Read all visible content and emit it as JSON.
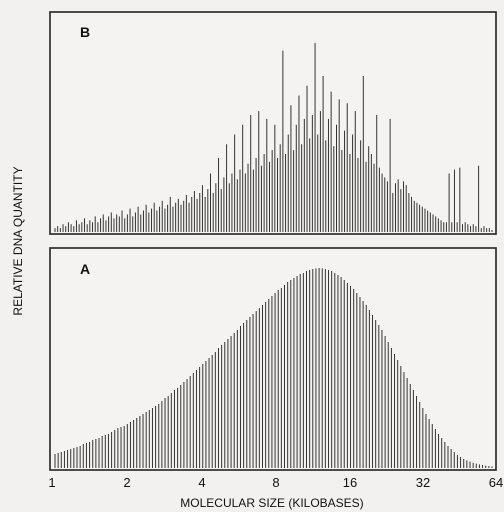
{
  "figure": {
    "ylabel": "RELATIVE DNA QUANTITY",
    "xlabel": "MOLECULAR SIZE (KILOBASES)",
    "tick_labels": [
      "1",
      "2",
      "4",
      "8",
      "16",
      "32",
      "64"
    ]
  },
  "chart_data": [
    {
      "type": "bar",
      "panel_label": "B",
      "x_scale": "log2",
      "xlim": [
        1,
        64
      ],
      "values": [
        0.02,
        0.03,
        0.02,
        0.04,
        0.03,
        0.05,
        0.04,
        0.03,
        0.06,
        0.04,
        0.05,
        0.07,
        0.04,
        0.06,
        0.05,
        0.08,
        0.05,
        0.07,
        0.09,
        0.06,
        0.08,
        0.1,
        0.07,
        0.09,
        0.08,
        0.11,
        0.07,
        0.09,
        0.12,
        0.08,
        0.1,
        0.13,
        0.09,
        0.11,
        0.14,
        0.1,
        0.12,
        0.15,
        0.11,
        0.13,
        0.16,
        0.12,
        0.14,
        0.18,
        0.13,
        0.15,
        0.17,
        0.14,
        0.16,
        0.19,
        0.15,
        0.18,
        0.21,
        0.17,
        0.2,
        0.24,
        0.18,
        0.22,
        0.3,
        0.2,
        0.25,
        0.38,
        0.22,
        0.28,
        0.45,
        0.25,
        0.3,
        0.5,
        0.27,
        0.32,
        0.55,
        0.3,
        0.35,
        0.6,
        0.32,
        0.38,
        0.62,
        0.34,
        0.4,
        0.58,
        0.36,
        0.42,
        0.55,
        0.38,
        0.45,
        0.93,
        0.4,
        0.5,
        0.65,
        0.42,
        0.55,
        0.7,
        0.45,
        0.58,
        0.75,
        0.48,
        0.6,
        0.97,
        0.5,
        0.62,
        0.8,
        0.47,
        0.58,
        0.72,
        0.44,
        0.55,
        0.68,
        0.42,
        0.52,
        0.66,
        0.4,
        0.5,
        0.62,
        0.38,
        0.47,
        0.8,
        0.36,
        0.44,
        0.4,
        0.35,
        0.6,
        0.33,
        0.3,
        0.28,
        0.26,
        0.58,
        0.2,
        0.25,
        0.27,
        0.22,
        0.26,
        0.24,
        0.2,
        0.18,
        0.16,
        0.15,
        0.14,
        0.13,
        0.12,
        0.11,
        0.1,
        0.09,
        0.08,
        0.07,
        0.06,
        0.05,
        0.05,
        0.3,
        0.05,
        0.32,
        0.05,
        0.33,
        0.04,
        0.05,
        0.04,
        0.03,
        0.04,
        0.03,
        0.34,
        0.02,
        0.03,
        0.02,
        0.02,
        0.01
      ]
    },
    {
      "type": "bar",
      "panel_label": "A",
      "x_scale": "log2",
      "xlim": [
        1,
        64
      ],
      "values": [
        0.07,
        0.075,
        0.08,
        0.085,
        0.09,
        0.095,
        0.1,
        0.105,
        0.11,
        0.12,
        0.125,
        0.13,
        0.14,
        0.145,
        0.15,
        0.16,
        0.165,
        0.17,
        0.18,
        0.19,
        0.2,
        0.205,
        0.21,
        0.22,
        0.23,
        0.24,
        0.25,
        0.26,
        0.27,
        0.28,
        0.29,
        0.3,
        0.31,
        0.32,
        0.335,
        0.35,
        0.36,
        0.375,
        0.39,
        0.4,
        0.415,
        0.43,
        0.445,
        0.46,
        0.475,
        0.49,
        0.505,
        0.52,
        0.535,
        0.55,
        0.565,
        0.58,
        0.6,
        0.615,
        0.63,
        0.645,
        0.66,
        0.675,
        0.69,
        0.71,
        0.725,
        0.74,
        0.755,
        0.77,
        0.785,
        0.8,
        0.815,
        0.83,
        0.845,
        0.86,
        0.875,
        0.89,
        0.9,
        0.915,
        0.93,
        0.94,
        0.95,
        0.96,
        0.97,
        0.975,
        0.985,
        0.99,
        0.995,
        0.998,
        1.0,
        0.998,
        0.995,
        0.99,
        0.985,
        0.975,
        0.965,
        0.955,
        0.94,
        0.925,
        0.91,
        0.895,
        0.875,
        0.855,
        0.835,
        0.815,
        0.79,
        0.765,
        0.74,
        0.715,
        0.69,
        0.66,
        0.63,
        0.6,
        0.57,
        0.54,
        0.51,
        0.48,
        0.45,
        0.42,
        0.39,
        0.36,
        0.33,
        0.3,
        0.27,
        0.245,
        0.22,
        0.195,
        0.17,
        0.15,
        0.13,
        0.11,
        0.095,
        0.08,
        0.065,
        0.055,
        0.045,
        0.038,
        0.032,
        0.026,
        0.022,
        0.018,
        0.015,
        0.012,
        0.01,
        0.008
      ]
    }
  ]
}
